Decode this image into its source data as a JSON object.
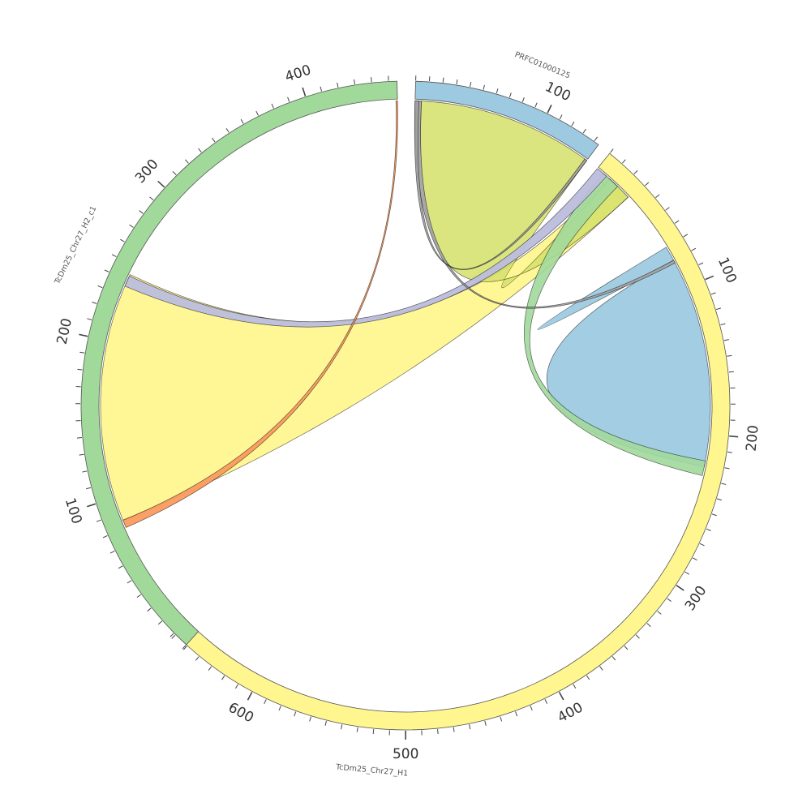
{
  "chart_data": {
    "type": "chord",
    "title": "",
    "sequences": [
      {
        "id": "tcdm_h1",
        "name": "TcDm25_Chr27_H1",
        "length": 665,
        "color": "#FFF68F",
        "major_ticks": [
          100,
          200,
          300,
          400,
          500,
          600
        ]
      },
      {
        "id": "tcdm_h2",
        "name": "TcDm25_Chr27_H2_c1",
        "length": 455,
        "color": "#A1D99B",
        "major_ticks": [
          100,
          200,
          300,
          400
        ]
      },
      {
        "id": "prfc",
        "name": "PRFC01000125",
        "length": 144,
        "color": "#9ECAE1",
        "major_ticks": [
          100
        ]
      }
    ],
    "links": [
      {
        "name": "h2-to-h1-large",
        "from": {
          "seq": "tcdm_h2",
          "start": 85,
          "end": 244
        },
        "to": {
          "seq": "tcdm_h1",
          "start": 10,
          "end": 28
        },
        "color": "#FFF68F",
        "opacity": 0.95
      },
      {
        "name": "prfc-to-h1-large",
        "from": {
          "seq": "prfc",
          "start": 5,
          "end": 144
        },
        "to": {
          "seq": "tcdm_h1",
          "start": 11,
          "end": 28
        },
        "color": "#D5E06A",
        "opacity": 0.85
      },
      {
        "name": "h1-self",
        "from": {
          "seq": "tcdm_h1",
          "start": 70,
          "end": 222
        },
        "to": {
          "seq": "tcdm_h1",
          "start": 80,
          "end": 80
        },
        "color": "#9ECAE1",
        "opacity": 0.95
      },
      {
        "name": "h1-self-green",
        "from": {
          "seq": "tcdm_h1",
          "start": 5,
          "end": 18
        },
        "to": {
          "seq": "tcdm_h1",
          "start": 218,
          "end": 228
        },
        "color": "#A1D99B",
        "opacity": 0.9
      },
      {
        "name": "h2-to-h1-purple",
        "from": {
          "seq": "tcdm_h2",
          "start": 236,
          "end": 243
        },
        "to": {
          "seq": "tcdm_h1",
          "start": 0,
          "end": 8
        },
        "color": "#BCBDDC",
        "opacity": 0.95
      },
      {
        "name": "h2-to-h2-orange",
        "from": {
          "seq": "tcdm_h2",
          "start": 80,
          "end": 85
        },
        "to": {
          "seq": "tcdm_h2",
          "start": 454,
          "end": 455
        },
        "color": "#FC9B5F",
        "opacity": 0.95
      },
      {
        "name": "prfc-to-h1-gray",
        "from": {
          "seq": "prfc",
          "start": 0,
          "end": 5
        },
        "to": {
          "seq": "tcdm_h1",
          "start": 80,
          "end": 82
        },
        "color": "#A5A5A5",
        "opacity": 0.95
      },
      {
        "name": "prfc-to-prfc-gray",
        "from": {
          "seq": "prfc",
          "start": 142,
          "end": 144
        },
        "to": {
          "seq": "prfc",
          "start": 0,
          "end": 3
        },
        "color": "#9E9E9E",
        "opacity": 0.9
      }
    ]
  }
}
